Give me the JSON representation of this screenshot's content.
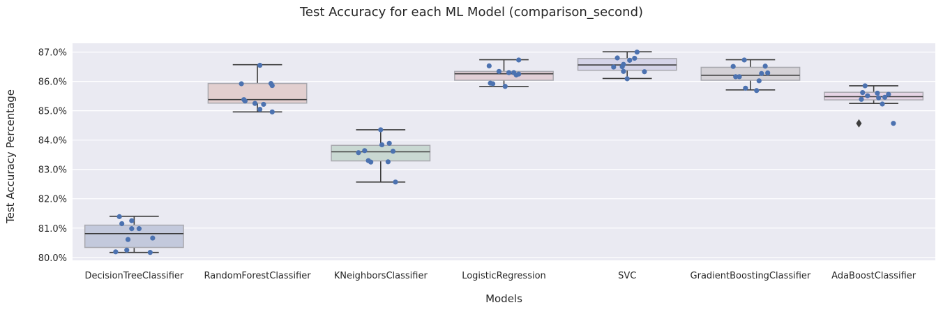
{
  "chart_data": {
    "type": "box",
    "title": "Test Accuracy for each ML Model (comparison_second)",
    "xlabel": "Models",
    "ylabel": "Test Accuracy Percentage",
    "ylim": [
      79.9,
      87.3
    ],
    "yticks": [
      "80.0%",
      "81.0%",
      "82.0%",
      "83.0%",
      "84.0%",
      "85.0%",
      "86.0%",
      "87.0%"
    ],
    "ytick_values": [
      80,
      81,
      82,
      83,
      84,
      85,
      86,
      87
    ],
    "grid": true,
    "background": "#eaeaf2",
    "point_color": "#4c72b0",
    "categories": [
      "DecisionTreeClassifier",
      "RandomForestClassifier",
      "KNeighborsClassifier",
      "LogisticRegression",
      "SVC",
      "GradientBoostingClassifier",
      "AdaBoostClassifier"
    ],
    "boxes": [
      {
        "whislo": 80.17,
        "q1": 80.34,
        "med": 80.81,
        "q3": 81.1,
        "whishi": 81.4,
        "fliers": [],
        "color": "#c3c9dc"
      },
      {
        "whislo": 84.96,
        "q1": 85.26,
        "med": 85.38,
        "q3": 85.93,
        "whishi": 86.57,
        "fliers": [],
        "color": "#e2cfcf"
      },
      {
        "whislo": 82.57,
        "q1": 83.29,
        "med": 83.6,
        "q3": 83.82,
        "whishi": 84.35,
        "fliers": [],
        "color": "#c9d8d2"
      },
      {
        "whislo": 85.83,
        "q1": 86.04,
        "med": 86.26,
        "q3": 86.34,
        "whishi": 86.74,
        "fliers": [],
        "color": "#e1cfd6"
      },
      {
        "whislo": 86.1,
        "q1": 86.38,
        "med": 86.56,
        "q3": 86.78,
        "whishi": 87.01,
        "fliers": [],
        "color": "#d5d4e8"
      },
      {
        "whislo": 85.71,
        "q1": 86.04,
        "med": 86.21,
        "q3": 86.48,
        "whishi": 86.74,
        "fliers": [],
        "color": "#d4d1d6"
      },
      {
        "whislo": 85.25,
        "q1": 85.37,
        "med": 85.48,
        "q3": 85.63,
        "whishi": 85.85,
        "fliers": [
          84.57
        ],
        "color": "#e6d5e5"
      }
    ],
    "points": [
      [
        [
          -0.15,
          80.19
        ],
        [
          -0.12,
          81.39
        ],
        [
          -0.1,
          81.15
        ],
        [
          -0.06,
          80.25
        ],
        [
          -0.05,
          80.61
        ],
        [
          -0.02,
          80.98
        ],
        [
          -0.02,
          81.25
        ],
        [
          0.04,
          80.98
        ],
        [
          0.13,
          80.17
        ],
        [
          0.15,
          80.66
        ]
      ],
      [
        [
          -0.13,
          85.92
        ],
        [
          -0.11,
          85.38
        ],
        [
          -0.1,
          85.33
        ],
        [
          -0.02,
          85.25
        ],
        [
          0.02,
          86.55
        ],
        [
          0.02,
          85.05
        ],
        [
          0.05,
          85.22
        ],
        [
          0.11,
          85.93
        ],
        [
          0.12,
          84.96
        ],
        [
          0.12,
          85.86
        ]
      ],
      [
        [
          -0.18,
          83.57
        ],
        [
          -0.13,
          83.64
        ],
        [
          -0.1,
          83.3
        ],
        [
          -0.08,
          83.25
        ],
        [
          0.0,
          84.35
        ],
        [
          0.01,
          83.84
        ],
        [
          0.06,
          83.26
        ],
        [
          0.07,
          83.89
        ],
        [
          0.1,
          83.62
        ],
        [
          0.12,
          82.57
        ]
      ],
      [
        [
          -0.12,
          86.53
        ],
        [
          -0.11,
          85.94
        ],
        [
          -0.09,
          85.92
        ],
        [
          -0.04,
          86.34
        ],
        [
          0.01,
          85.83
        ],
        [
          0.04,
          86.3
        ],
        [
          0.08,
          86.3
        ],
        [
          0.1,
          86.22
        ],
        [
          0.12,
          86.73
        ],
        [
          0.12,
          86.25
        ]
      ],
      [
        [
          -0.11,
          86.49
        ],
        [
          -0.08,
          86.8
        ],
        [
          -0.04,
          86.5
        ],
        [
          -0.03,
          86.58
        ],
        [
          -0.03,
          86.34
        ],
        [
          0.0,
          86.09
        ],
        [
          0.02,
          86.72
        ],
        [
          0.06,
          86.79
        ],
        [
          0.08,
          87.0
        ],
        [
          0.14,
          86.33
        ]
      ],
      [
        [
          -0.14,
          86.51
        ],
        [
          -0.12,
          86.16
        ],
        [
          -0.09,
          86.16
        ],
        [
          -0.05,
          86.73
        ],
        [
          -0.04,
          85.77
        ],
        [
          0.05,
          85.69
        ],
        [
          0.07,
          86.02
        ],
        [
          0.09,
          86.27
        ],
        [
          0.12,
          86.52
        ],
        [
          0.14,
          86.29
        ]
      ],
      [
        [
          -0.1,
          85.39
        ],
        [
          -0.09,
          85.62
        ],
        [
          -0.07,
          85.85
        ],
        [
          -0.05,
          85.51
        ],
        [
          0.03,
          85.6
        ],
        [
          0.04,
          85.44
        ],
        [
          0.07,
          85.23
        ],
        [
          0.09,
          85.46
        ],
        [
          0.12,
          85.56
        ],
        [
          0.16,
          84.57
        ]
      ]
    ]
  }
}
